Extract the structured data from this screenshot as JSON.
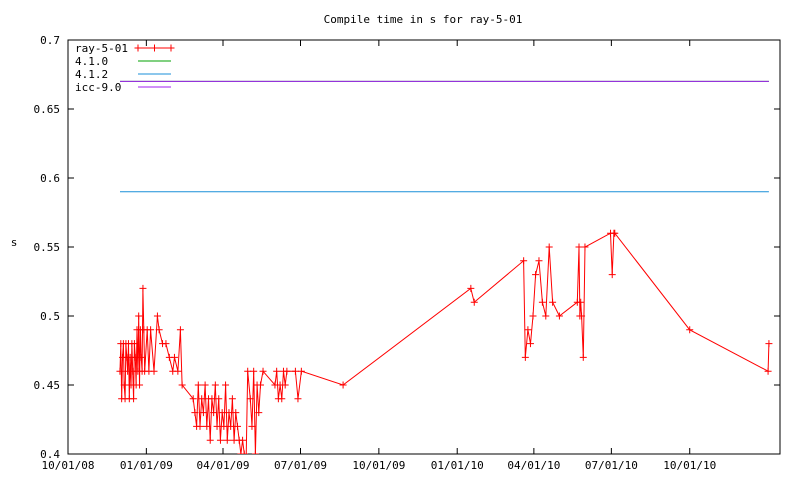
{
  "chart_data": {
    "type": "line",
    "title": "Compile time in s for ray-5-01",
    "xlabel": "",
    "ylabel": "s",
    "ylim": [
      0.4,
      0.7
    ],
    "xlim": [
      "2008-10-01",
      "2011-01-15"
    ],
    "yticks": [
      "0.4",
      "0.45",
      "0.5",
      "0.55",
      "0.6",
      "0.65",
      "0.7"
    ],
    "xticks": [
      "10/01/08",
      "01/01/09",
      "04/01/09",
      "07/01/09",
      "10/01/09",
      "01/01/10",
      "04/01/10",
      "07/01/10",
      "10/01/10"
    ],
    "grid": false,
    "legend": "top-left",
    "series": [
      {
        "name": "ray-5-01",
        "color": "#ff0000",
        "marker": "plus",
        "points": [
          [
            "2008-12-01",
            0.46
          ],
          [
            "2008-12-02",
            0.48
          ],
          [
            "2008-12-03",
            0.44
          ],
          [
            "2008-12-04",
            0.47
          ],
          [
            "2008-12-05",
            0.48
          ],
          [
            "2008-12-06",
            0.45
          ],
          [
            "2008-12-07",
            0.44
          ],
          [
            "2008-12-08",
            0.48
          ],
          [
            "2008-12-09",
            0.47
          ],
          [
            "2008-12-10",
            0.46
          ],
          [
            "2008-12-11",
            0.48
          ],
          [
            "2008-12-12",
            0.44
          ],
          [
            "2008-12-13",
            0.47
          ],
          [
            "2008-12-14",
            0.45
          ],
          [
            "2008-12-15",
            0.48
          ],
          [
            "2008-12-16",
            0.46
          ],
          [
            "2008-12-17",
            0.44
          ],
          [
            "2008-12-18",
            0.48
          ],
          [
            "2008-12-19",
            0.47
          ],
          [
            "2008-12-20",
            0.45
          ],
          [
            "2008-12-21",
            0.49
          ],
          [
            "2008-12-22",
            0.46
          ],
          [
            "2008-12-23",
            0.5
          ],
          [
            "2008-12-24",
            0.45
          ],
          [
            "2008-12-25",
            0.49
          ],
          [
            "2008-12-26",
            0.47
          ],
          [
            "2008-12-27",
            0.46
          ],
          [
            "2008-12-28",
            0.52
          ],
          [
            "2008-12-29",
            0.49
          ],
          [
            "2008-12-30",
            0.46
          ],
          [
            "2009-01-02",
            0.49
          ],
          [
            "2009-01-04",
            0.46
          ],
          [
            "2009-01-06",
            0.49
          ],
          [
            "2009-01-10",
            0.46
          ],
          [
            "2009-01-14",
            0.5
          ],
          [
            "2009-01-16",
            0.49
          ],
          [
            "2009-01-20",
            0.48
          ],
          [
            "2009-01-24",
            0.48
          ],
          [
            "2009-01-28",
            0.47
          ],
          [
            "2009-02-01",
            0.46
          ],
          [
            "2009-02-03",
            0.47
          ],
          [
            "2009-02-07",
            0.46
          ],
          [
            "2009-02-10",
            0.49
          ],
          [
            "2009-02-12",
            0.45
          ],
          [
            "2009-02-25",
            0.44
          ],
          [
            "2009-02-27",
            0.43
          ],
          [
            "2009-03-01",
            0.42
          ],
          [
            "2009-03-03",
            0.45
          ],
          [
            "2009-03-05",
            0.42
          ],
          [
            "2009-03-07",
            0.44
          ],
          [
            "2009-03-09",
            0.43
          ],
          [
            "2009-03-11",
            0.45
          ],
          [
            "2009-03-13",
            0.42
          ],
          [
            "2009-03-15",
            0.44
          ],
          [
            "2009-03-17",
            0.41
          ],
          [
            "2009-03-19",
            0.44
          ],
          [
            "2009-03-21",
            0.43
          ],
          [
            "2009-03-23",
            0.45
          ],
          [
            "2009-03-25",
            0.42
          ],
          [
            "2009-03-27",
            0.44
          ],
          [
            "2009-03-29",
            0.41
          ],
          [
            "2009-03-31",
            0.43
          ],
          [
            "2009-04-02",
            0.42
          ],
          [
            "2009-04-04",
            0.45
          ],
          [
            "2009-04-06",
            0.41
          ],
          [
            "2009-04-08",
            0.43
          ],
          [
            "2009-04-10",
            0.42
          ],
          [
            "2009-04-12",
            0.44
          ],
          [
            "2009-04-14",
            0.41
          ],
          [
            "2009-04-16",
            0.43
          ],
          [
            "2009-04-18",
            0.42
          ],
          [
            "2009-04-20",
            0.41
          ],
          [
            "2009-04-22",
            0.4
          ],
          [
            "2009-04-24",
            0.41
          ],
          [
            "2009-04-26",
            0.4
          ],
          [
            "2009-04-28",
            0.39
          ],
          [
            "2009-04-30",
            0.46
          ],
          [
            "2009-05-03",
            0.44
          ],
          [
            "2009-05-05",
            0.42
          ],
          [
            "2009-05-07",
            0.46
          ],
          [
            "2009-05-09",
            0.4
          ],
          [
            "2009-05-11",
            0.45
          ],
          [
            "2009-05-13",
            0.43
          ],
          [
            "2009-05-15",
            0.45
          ],
          [
            "2009-05-18",
            0.46
          ],
          [
            "2009-06-01",
            0.45
          ],
          [
            "2009-06-03",
            0.46
          ],
          [
            "2009-06-05",
            0.44
          ],
          [
            "2009-06-07",
            0.45
          ],
          [
            "2009-06-09",
            0.44
          ],
          [
            "2009-06-11",
            0.46
          ],
          [
            "2009-06-13",
            0.45
          ],
          [
            "2009-06-15",
            0.46
          ],
          [
            "2009-06-25",
            0.46
          ],
          [
            "2009-06-28",
            0.44
          ],
          [
            "2009-07-02",
            0.46
          ],
          [
            "2009-08-20",
            0.45
          ],
          [
            "2010-01-17",
            0.52
          ],
          [
            "2010-01-21",
            0.51
          ],
          [
            "2010-03-20",
            0.54
          ],
          [
            "2010-03-22",
            0.47
          ],
          [
            "2010-03-25",
            0.49
          ],
          [
            "2010-03-28",
            0.48
          ],
          [
            "2010-03-31",
            0.5
          ],
          [
            "2010-04-03",
            0.53
          ],
          [
            "2010-04-07",
            0.54
          ],
          [
            "2010-04-11",
            0.51
          ],
          [
            "2010-04-15",
            0.5
          ],
          [
            "2010-04-19",
            0.55
          ],
          [
            "2010-04-23",
            0.51
          ],
          [
            "2010-05-01",
            0.5
          ],
          [
            "2010-05-22",
            0.51
          ],
          [
            "2010-05-24",
            0.55
          ],
          [
            "2010-05-25",
            0.5
          ],
          [
            "2010-05-26",
            0.51
          ],
          [
            "2010-05-27",
            0.5
          ],
          [
            "2010-05-29",
            0.47
          ],
          [
            "2010-05-31",
            0.55
          ],
          [
            "2010-06-30",
            0.56
          ],
          [
            "2010-07-02",
            0.53
          ],
          [
            "2010-07-04",
            0.56
          ],
          [
            "2010-07-05",
            0.56
          ],
          [
            "2010-10-01",
            0.49
          ],
          [
            "2011-01-01",
            0.46
          ],
          [
            "2011-01-02",
            0.48
          ]
        ]
      },
      {
        "name": "4.1.0",
        "color": "#00a000",
        "points": [
          [
            "2008-12-01",
            0.67
          ],
          [
            "2011-01-02",
            0.67
          ]
        ]
      },
      {
        "name": "4.1.2",
        "color": "#1a8fd8",
        "points": [
          [
            "2008-12-01",
            0.59
          ],
          [
            "2011-01-02",
            0.59
          ]
        ]
      },
      {
        "name": "icc-9.0",
        "color": "#a020f0",
        "points": [
          [
            "2008-12-01",
            0.67
          ],
          [
            "2011-01-02",
            0.67
          ]
        ]
      }
    ]
  }
}
